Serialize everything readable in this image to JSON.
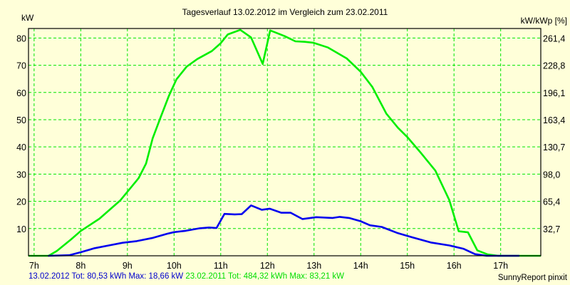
{
  "chart_data": {
    "type": "line",
    "title": "Tagesverlauf 13.02.2012 im Vergleich zum 23.02.2011",
    "ylabel_left": "kW",
    "ylabel_right": "kW/kWp [%]",
    "xlabel": "",
    "xlim": [
      6.88,
      17.86
    ],
    "ylim": [
      0,
      83.5
    ],
    "grid": true,
    "x_ticks": [
      "7h",
      "8h",
      "9h",
      "10h",
      "11h",
      "12h",
      "13h",
      "14h",
      "15h",
      "16h",
      "17h"
    ],
    "x_tick_values": [
      7,
      8,
      9,
      10,
      11,
      12,
      13,
      14,
      15,
      16,
      17
    ],
    "y_ticks_left": [
      "10",
      "20",
      "30",
      "40",
      "50",
      "60",
      "70",
      "80"
    ],
    "y_tick_values_left": [
      10,
      20,
      30,
      40,
      50,
      60,
      70,
      80
    ],
    "y_ticks_right": [
      "32,7",
      "65,4",
      "98,0",
      "130,7",
      "163,4",
      "196,1",
      "228,8",
      "261,4"
    ],
    "series": [
      {
        "name": "23.02.2011",
        "color": "#00ee00",
        "x": [
          6.88,
          7.31,
          7.49,
          7.79,
          8.0,
          8.4,
          8.85,
          9.24,
          9.4,
          9.54,
          9.7,
          9.89,
          10.05,
          10.27,
          10.5,
          10.81,
          11.0,
          11.15,
          11.42,
          11.65,
          11.9,
          12.06,
          12.37,
          12.6,
          12.8,
          12.98,
          13.3,
          13.7,
          14.0,
          14.25,
          14.55,
          14.8,
          15.0,
          15.3,
          15.6,
          15.9,
          16.1,
          16.3,
          16.5,
          16.72,
          16.95,
          17.2,
          17.45,
          17.86
        ],
        "values": [
          0,
          0,
          1.8,
          6.0,
          9.1,
          13.6,
          20.4,
          28.5,
          33.9,
          43.1,
          50.4,
          58.8,
          64.8,
          69.5,
          72.3,
          75.2,
          78.1,
          81.3,
          83.0,
          80.2,
          70.5,
          82.8,
          80.7,
          78.8,
          78.6,
          78.3,
          76.5,
          72.5,
          67.6,
          62.0,
          52.2,
          47.0,
          43.6,
          37.6,
          31.3,
          20.4,
          9.0,
          8.6,
          2.0,
          0.5,
          0,
          0,
          0,
          0
        ],
        "tot": "484,32 kWh",
        "max": "83,21 kW"
      },
      {
        "name": "13.02.2012",
        "color": "#0000ee",
        "x": [
          7.3,
          7.75,
          8.0,
          8.3,
          8.6,
          8.9,
          9.2,
          9.55,
          9.85,
          10.0,
          10.25,
          10.55,
          10.75,
          10.91,
          11.08,
          11.3,
          11.45,
          11.65,
          11.88,
          12.05,
          12.3,
          12.5,
          12.75,
          13.05,
          13.4,
          13.55,
          13.75,
          14.0,
          14.2,
          14.45,
          14.8,
          15.1,
          15.5,
          15.9,
          16.2,
          16.45,
          16.7,
          16.95,
          17.4
        ],
        "values": [
          0,
          0.2,
          1.3,
          2.8,
          3.8,
          4.8,
          5.4,
          6.6,
          8.1,
          8.7,
          9.2,
          10.1,
          10.4,
          10.2,
          15.4,
          15.2,
          15.3,
          18.5,
          16.9,
          17.3,
          15.8,
          15.8,
          13.5,
          14.2,
          13.9,
          14.3,
          13.9,
          12.7,
          11.2,
          10.6,
          8.3,
          6.8,
          4.9,
          3.8,
          2.6,
          0.6,
          0,
          0,
          0
        ],
        "tot": "80,53 kWh",
        "max": "18,66 kW"
      }
    ]
  },
  "header": {
    "title": "Tagesverlauf 13.02.2012 im Vergleich zum 23.02.2011",
    "ylabel_left": "kW",
    "ylabel_right": "kW/kWp [%]"
  },
  "footer": {
    "blue_text": "13.02.2012 Tot: 80,53 kWh Max: 18,66 kW",
    "green_text": "23.02.2011 Tot: 484,32 kWh Max: 83,21 kW",
    "blue_color": "#0000cc",
    "green_color": "#00dd00",
    "credit": "SunnyReport pinxit"
  }
}
